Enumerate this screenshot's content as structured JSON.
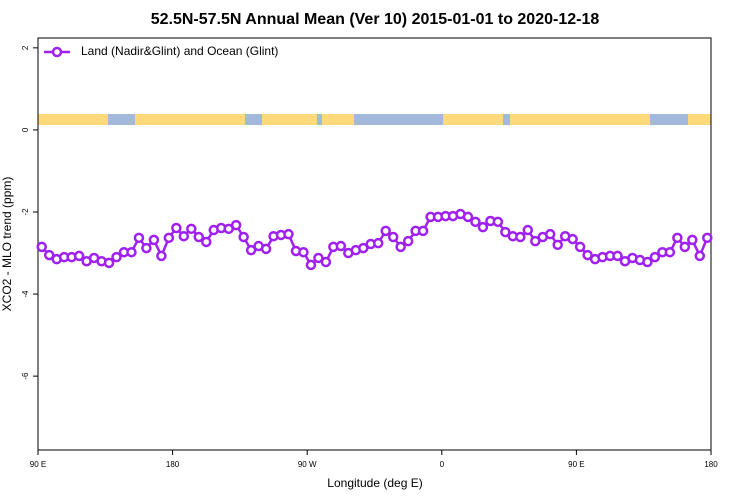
{
  "chart_data": {
    "type": "line",
    "title": "52.5N-57.5N Annual Mean (Ver 10)   2015-01-01 to 2020-12-18",
    "x_label": "Longitude (deg E)",
    "y_label": "XCO2 - MLO trend (ppm)",
    "x": [
      92.5,
      97.5,
      102.5,
      107.5,
      112.5,
      117.5,
      122.5,
      127.5,
      132.5,
      137.5,
      142.5,
      147.5,
      152.5,
      157.5,
      162.5,
      167.5,
      172.5,
      177.5,
      182.5,
      187.5,
      192.5,
      197.5,
      202.5,
      207.5,
      212.5,
      217.5,
      222.5,
      227.5,
      232.5,
      237.5,
      242.5,
      247.5,
      252.5,
      257.5,
      262.5,
      267.5,
      272.5,
      277.5,
      282.5,
      287.5,
      292.5,
      297.5,
      302.5,
      307.5,
      312.5,
      317.5,
      322.5,
      327.5,
      332.5,
      337.5,
      342.5,
      347.5,
      352.5,
      357.5,
      362.5,
      367.5,
      372.5,
      377.5,
      382.5,
      387.5,
      392.5,
      397.5,
      402.5,
      407.5,
      412.5,
      417.5,
      422.5,
      427.5,
      432.5,
      437.5,
      442.5,
      447.5,
      452.5,
      457.5,
      462.5,
      467.5,
      472.5,
      477.5,
      482.5,
      487.5,
      492.5,
      497.5,
      502.5,
      507.5,
      512.5,
      517.5,
      522.5,
      527.5,
      532.5,
      537.5
    ],
    "series": [
      {
        "name": "Land (Nadir&Glint) and Ocean (Glint)",
        "color": "#a020f0",
        "values": [
          -2.85,
          -3.05,
          -3.15,
          -3.1,
          -3.1,
          -3.07,
          -3.2,
          -3.12,
          -3.2,
          -3.24,
          -3.1,
          -2.98,
          -2.98,
          -2.63,
          -2.88,
          -2.68,
          -3.07,
          -2.63,
          -2.39,
          -2.59,
          -2.41,
          -2.61,
          -2.73,
          -2.44,
          -2.39,
          -2.41,
          -2.32,
          -2.61,
          -2.93,
          -2.83,
          -2.9,
          -2.59,
          -2.56,
          -2.54,
          -2.95,
          -2.98,
          -3.29,
          -3.12,
          -3.22,
          -2.85,
          -2.83,
          -3.0,
          -2.93,
          -2.88,
          -2.78,
          -2.76,
          -2.46,
          -2.61,
          -2.85,
          -2.71,
          -2.46,
          -2.46,
          -2.12,
          -2.12,
          -2.1,
          -2.1,
          -2.05,
          -2.12,
          -2.24,
          -2.37,
          -2.22,
          -2.24,
          -2.49,
          -2.59,
          -2.61,
          -2.44,
          -2.71,
          -2.61,
          -2.54,
          -2.8,
          -2.59,
          -2.66,
          -2.85,
          -3.05,
          -3.15,
          -3.1,
          -3.07,
          -3.07,
          -3.2,
          -3.12,
          -3.17,
          -3.22,
          -3.1,
          -2.98,
          -2.98,
          -2.63,
          -2.85,
          -2.68,
          -3.07,
          -2.63
        ]
      }
    ],
    "xlim": [
      90,
      540
    ],
    "xticks": [
      {
        "value": 90,
        "label": "90 E"
      },
      {
        "value": 180,
        "label": "180"
      },
      {
        "value": 270,
        "label": "90 W"
      },
      {
        "value": 360,
        "label": "0"
      },
      {
        "value": 450,
        "label": "90 E"
      },
      {
        "value": 540,
        "label": "180"
      }
    ],
    "ylim": [
      -7.8,
      2.24
    ],
    "yticks": [
      -6,
      -4,
      -2,
      0,
      2
    ],
    "legend": "top-left"
  }
}
